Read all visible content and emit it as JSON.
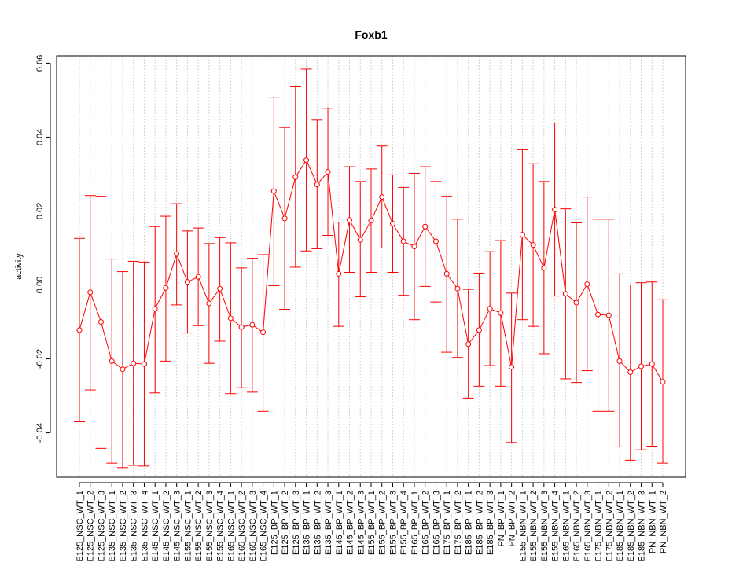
{
  "chart_data": {
    "type": "line",
    "title": "Foxb1",
    "xlabel": "",
    "ylabel": "activity",
    "ylim": [
      -0.052,
      0.062
    ],
    "yticks": [
      -0.04,
      -0.02,
      0.0,
      0.02,
      0.04,
      0.06
    ],
    "ytick_labels": [
      "-0.04",
      "-0.02",
      "0.00",
      "0.02",
      "0.04",
      "0.06"
    ],
    "reference_line": 0,
    "grid": true,
    "series_color": "#ff0000",
    "grid_color": "#d3d3d3",
    "categories": [
      "E125_NSC_WT_1",
      "E125_NSC_WT_2",
      "E125_NSC_WT_3",
      "E135_NSC_WT_1",
      "E135_NSC_WT_2",
      "E135_NSC_WT_3",
      "E135_NSC_WT_4",
      "E145_NSC_WT_1",
      "E145_NSC_WT_2",
      "E145_NSC_WT_3",
      "E155_NSC_WT_1",
      "E155_NSC_WT_2",
      "E155_NSC_WT_3",
      "E155_NSC_WT_4",
      "E165_NSC_WT_1",
      "E165_NSC_WT_2",
      "E165_NSC_WT_3",
      "E165_NSC_WT_4",
      "E125_BP_WT_1",
      "E125_BP_WT_2",
      "E125_BP_WT_3",
      "E135_BP_WT_1",
      "E135_BP_WT_2",
      "E135_BP_WT_3",
      "E145_BP_WT_1",
      "E145_BP_WT_2",
      "E145_BP_WT_3",
      "E155_BP_WT_1",
      "E155_BP_WT_2",
      "E155_BP_WT_3",
      "E155_BP_WT_4",
      "E165_BP_WT_1",
      "E165_BP_WT_2",
      "E165_BP_WT_3",
      "E175_BP_WT_1",
      "E175_BP_WT_2",
      "E185_BP_WT_1",
      "E185_BP_WT_2",
      "E185_BP_WT_3",
      "PN_BP_WT_1",
      "PN_BP_WT_2",
      "E155_NBN_WT_1",
      "E155_NBN_WT_2",
      "E155_NBN_WT_3",
      "E155_NBN_WT_4",
      "E165_NBN_WT_1",
      "E165_NBN_WT_2",
      "E165_NBN_WT_3",
      "E175_NBN_WT_1",
      "E175_NBN_WT_2",
      "E185_NBN_WT_1",
      "E185_NBN_WT_2",
      "E185_NBN_WT_3",
      "PN_NBN_WT_1",
      "PN_NBN_WT_2"
    ],
    "values": [
      -0.0122,
      -0.002,
      -0.01,
      -0.0206,
      -0.0228,
      -0.0212,
      -0.0214,
      -0.0064,
      -0.0008,
      0.0084,
      0.0008,
      0.0022,
      -0.005,
      -0.001,
      -0.009,
      -0.0114,
      -0.0108,
      -0.0128,
      0.0254,
      0.018,
      0.0292,
      0.0338,
      0.0272,
      0.0306,
      0.003,
      0.0176,
      0.0122,
      0.0174,
      0.0238,
      0.0166,
      0.0118,
      0.0104,
      0.0158,
      0.0118,
      0.003,
      -0.001,
      -0.016,
      -0.0122,
      -0.0064,
      -0.0076,
      -0.0222,
      0.0136,
      0.0108,
      0.0046,
      0.0204,
      -0.0024,
      -0.0048,
      0.0002,
      -0.008,
      -0.0082,
      -0.0206,
      -0.0236,
      -0.022,
      -0.0214,
      -0.0262
    ],
    "upper": [
      0.0126,
      0.0242,
      0.024,
      0.007,
      0.0036,
      0.0064,
      0.0062,
      0.0158,
      0.0186,
      0.022,
      0.0146,
      0.0154,
      0.0112,
      0.0128,
      0.0114,
      0.0046,
      0.0072,
      0.0082,
      0.0508,
      0.0426,
      0.0536,
      0.0584,
      0.0446,
      0.0478,
      0.017,
      0.032,
      0.028,
      0.0314,
      0.0376,
      0.0298,
      0.0264,
      0.0302,
      0.032,
      0.028,
      0.024,
      0.0178,
      -0.0012,
      0.0032,
      0.009,
      0.012,
      -0.0022,
      0.0366,
      0.0328,
      0.028,
      0.0438,
      0.0206,
      0.0168,
      0.0238,
      0.0178,
      0.0178,
      0.003,
      0.0,
      0.0006,
      0.0008,
      -0.004
    ],
    "lower": [
      -0.037,
      -0.0284,
      -0.0442,
      -0.0482,
      -0.0494,
      -0.0488,
      -0.049,
      -0.0292,
      -0.0206,
      -0.0054,
      -0.013,
      -0.011,
      -0.0212,
      -0.0152,
      -0.0294,
      -0.0278,
      -0.029,
      -0.0342,
      -0.0002,
      -0.0066,
      0.0048,
      0.0092,
      0.0098,
      0.0134,
      -0.0112,
      0.0034,
      -0.0032,
      0.0034,
      0.01,
      0.0034,
      -0.0028,
      -0.0094,
      -0.0004,
      -0.0046,
      -0.0182,
      -0.0196,
      -0.0306,
      -0.0274,
      -0.0218,
      -0.0274,
      -0.0426,
      -0.0094,
      -0.0112,
      -0.0186,
      -0.003,
      -0.0254,
      -0.0264,
      -0.0232,
      -0.0342,
      -0.0342,
      -0.0438,
      -0.0474,
      -0.0446,
      -0.0436,
      -0.0482
    ]
  }
}
